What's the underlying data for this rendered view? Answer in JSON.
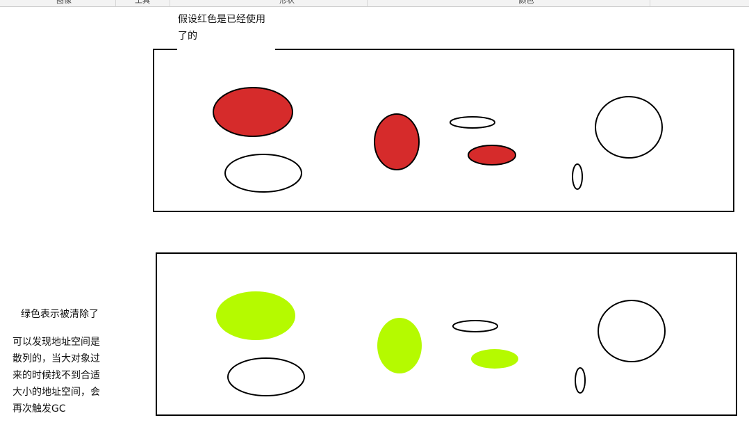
{
  "toolbar": {
    "tabs": [
      "图像",
      "工具",
      "形状",
      "颜色"
    ]
  },
  "annotations": {
    "top_caption": "假设红色是已经使用\n了的",
    "legend_green": "绿色表示被清除了",
    "explanation": "可以发现地址空间是\n散列的，当大对象过\n来的时候找不到合适\n大小的地址空间，会\n再次触发GC"
  },
  "colors": {
    "used": "#d62b2b",
    "cleared": "#b5fa00",
    "free": "#ffffff",
    "stroke": "#000000"
  },
  "panels": [
    {
      "name": "before-gc",
      "objects": [
        {
          "state": "used"
        },
        {
          "state": "free"
        },
        {
          "state": "used"
        },
        {
          "state": "free"
        },
        {
          "state": "used"
        },
        {
          "state": "free"
        },
        {
          "state": "free"
        }
      ]
    },
    {
      "name": "after-gc",
      "objects": [
        {
          "state": "cleared"
        },
        {
          "state": "free"
        },
        {
          "state": "cleared"
        },
        {
          "state": "free"
        },
        {
          "state": "cleared"
        },
        {
          "state": "free"
        },
        {
          "state": "free"
        }
      ]
    }
  ]
}
